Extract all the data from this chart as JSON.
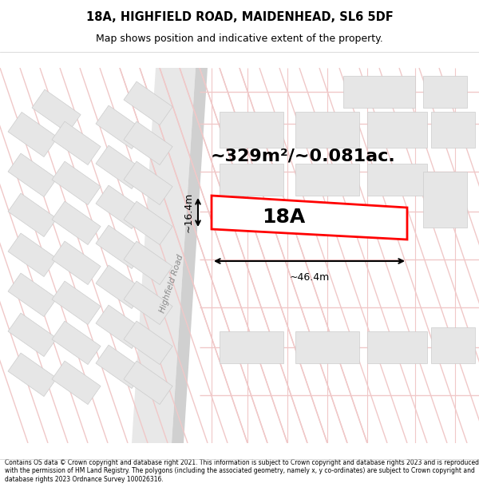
{
  "title_line1": "18A, HIGHFIELD ROAD, MAIDENHEAD, SL6 5DF",
  "title_line2": "Map shows position and indicative extent of the property.",
  "area_text": "~329m²/~0.081ac.",
  "label_18A": "18A",
  "width_label": "~46.4m",
  "height_label": "~16.4m",
  "road_label": "Highfield Road",
  "footer_text": "Contains OS data © Crown copyright and database right 2021. This information is subject to Crown copyright and database rights 2023 and is reproduced with the permission of HM Land Registry. The polygons (including the associated geometry, namely x, y co-ordinates) are subject to Crown copyright and database rights 2023 Ordnance Survey 100026316.",
  "bg_color": "#f5f5f5",
  "map_bg": "#ffffff",
  "plot_fill": "#ffffff",
  "plot_edge": "#ff0000",
  "road_color_light": "#ffcccc",
  "building_fill": "#e8e8e8",
  "building_stroke": "#cccccc",
  "road_stripe": "#e0e0e0",
  "road_main": "#d0d0d0"
}
